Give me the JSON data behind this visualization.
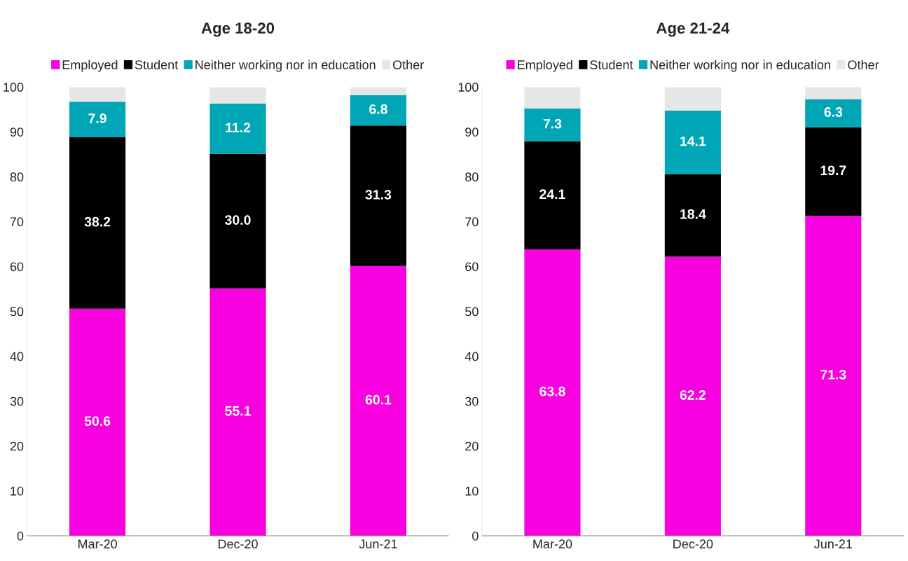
{
  "chart_data": [
    {
      "type": "bar",
      "title": "Age 18-20",
      "stacked": true,
      "categories": [
        "Mar-20",
        "Dec-20",
        "Jun-21"
      ],
      "ylim": [
        0,
        100
      ],
      "yticks": [
        0,
        10,
        20,
        30,
        40,
        50,
        60,
        70,
        80,
        90,
        100
      ],
      "grid": false,
      "legend": "top",
      "series": [
        {
          "name": "Employed",
          "color": "#f800e0",
          "values": [
            50.6,
            55.1,
            60.1
          ],
          "value_labels": [
            "50.6",
            "55.1",
            "60.1"
          ]
        },
        {
          "name": "Student",
          "color": "#000000",
          "values": [
            38.2,
            30.0,
            31.3
          ],
          "value_labels": [
            "38.2",
            "30.0",
            "31.3"
          ]
        },
        {
          "name": "Neither working nor in education",
          "color": "#00a6b6",
          "values": [
            7.9,
            11.2,
            6.8
          ],
          "value_labels": [
            "7.9",
            "11.2",
            "6.8"
          ]
        },
        {
          "name": "Other",
          "color": "#e6e6e6",
          "values": [
            3.3,
            3.7,
            1.8
          ]
        }
      ]
    },
    {
      "type": "bar",
      "title": "Age 21-24",
      "stacked": true,
      "categories": [
        "Mar-20",
        "Dec-20",
        "Jun-21"
      ],
      "ylim": [
        0,
        100
      ],
      "yticks": [
        0,
        10,
        20,
        30,
        40,
        50,
        60,
        70,
        80,
        90,
        100
      ],
      "grid": false,
      "legend": "top",
      "series": [
        {
          "name": "Employed",
          "color": "#f800e0",
          "values": [
            63.8,
            62.2,
            71.3
          ],
          "value_labels": [
            "63.8",
            "62.2",
            "71.3"
          ]
        },
        {
          "name": "Student",
          "color": "#000000",
          "values": [
            24.1,
            18.4,
            19.7
          ],
          "value_labels": [
            "24.1",
            "18.4",
            "19.7"
          ]
        },
        {
          "name": "Neither working nor in education",
          "color": "#00a6b6",
          "values": [
            7.3,
            14.1,
            6.3
          ],
          "value_labels": [
            "7.3",
            "14.1",
            "6.3"
          ]
        },
        {
          "name": "Other",
          "color": "#e6e6e6",
          "values": [
            4.8,
            5.3,
            2.7
          ]
        }
      ]
    }
  ]
}
